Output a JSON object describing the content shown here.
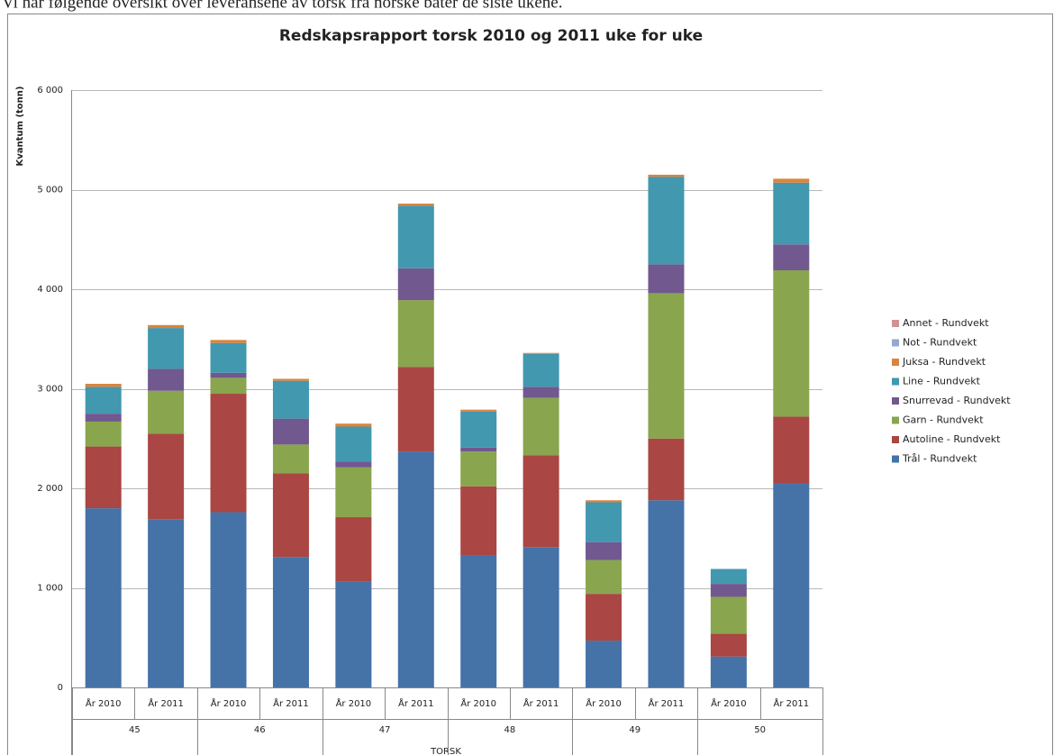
{
  "intro": "Vi har følgende oversikt over leveransene av torsk fra norske båter de siste ukene.",
  "chart_data": {
    "type": "stacked-bar",
    "title": "Redskapsrapport torsk 2010 og 2011 uke for uke",
    "y_label": "Kvantum (tonn)",
    "x_label": "TORSK",
    "categories": [
      "År 2010",
      "År 2011",
      "År 2010",
      "År 2011",
      "År 2010",
      "År 2011",
      "År 2010",
      "År 2011",
      "År 2010",
      "År 2011",
      "År 2010",
      "År 2011"
    ],
    "groups": [
      "45",
      "46",
      "47",
      "48",
      "49",
      "50"
    ],
    "ylim": [
      0,
      6000
    ],
    "yticks": [
      0,
      {
        "value": 1000,
        "label": "1 000"
      },
      {
        "value": 2000,
        "label": "2 000"
      },
      {
        "value": 3000,
        "label": "3 000"
      },
      {
        "value": 4000,
        "label": "4 000"
      },
      {
        "value": 5000,
        "label": "5 000"
      },
      {
        "value": 6000,
        "label": "6 000"
      }
    ],
    "grid": true,
    "legend": "right",
    "series": [
      {
        "name": "Trål - Rundvekt",
        "color": "#4572a7",
        "values": [
          1800,
          1690,
          1760,
          1310,
          1060,
          2370,
          1330,
          1410,
          470,
          1880,
          310,
          2050
        ]
      },
      {
        "name": "Autoline - Rundvekt",
        "color": "#aa4643",
        "values": [
          620,
          860,
          1190,
          840,
          650,
          850,
          690,
          920,
          470,
          620,
          230,
          670
        ]
      },
      {
        "name": "Garn - Rundvekt",
        "color": "#89a54e",
        "values": [
          250,
          430,
          160,
          290,
          500,
          670,
          350,
          580,
          340,
          1460,
          370,
          1470
        ]
      },
      {
        "name": "Snurrevad - Rundvekt",
        "color": "#71588f",
        "values": [
          80,
          220,
          50,
          260,
          60,
          320,
          40,
          110,
          180,
          290,
          130,
          260
        ]
      },
      {
        "name": "Line - Rundvekt",
        "color": "#4198af",
        "values": [
          270,
          410,
          300,
          380,
          350,
          630,
          360,
          330,
          400,
          880,
          150,
          620
        ]
      },
      {
        "name": "Juksa - Rundvekt",
        "color": "#db843d",
        "values": [
          30,
          30,
          30,
          20,
          30,
          20,
          20,
          10,
          20,
          20,
          0,
          40
        ]
      },
      {
        "name": "Not - Rundvekt",
        "color": "#93a9cf",
        "values": [
          0,
          0,
          0,
          0,
          0,
          0,
          0,
          0,
          0,
          0,
          0,
          0
        ]
      },
      {
        "name": "Annet - Rundvekt",
        "color": "#d19392",
        "values": [
          0,
          0,
          0,
          0,
          0,
          0,
          0,
          0,
          0,
          0,
          0,
          0
        ]
      }
    ]
  }
}
